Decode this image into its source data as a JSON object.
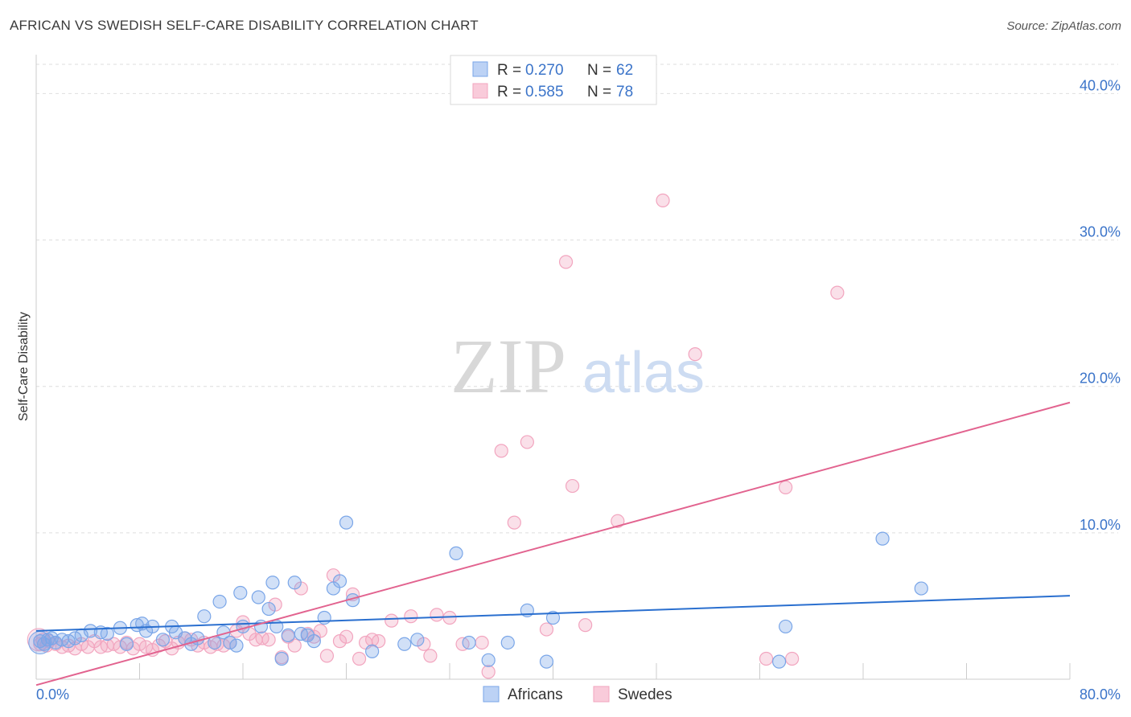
{
  "title": "AFRICAN VS SWEDISH SELF-CARE DISABILITY CORRELATION CHART",
  "source": "Source: ZipAtlas.com",
  "watermark": {
    "zip": "ZIP",
    "atlas": "atlas"
  },
  "colors": {
    "africans": "#7aa6e8",
    "africans_line": "#2a6fcf",
    "swedes": "#f2a5bf",
    "swedes_line": "#e2638f",
    "tick_label": "#3b74c9",
    "grid": "#dedede"
  },
  "legend_top": [
    {
      "r_label": "R = ",
      "r_value": "0.270",
      "n_label": "N = ",
      "n_value": "62"
    },
    {
      "r_label": "R = ",
      "r_value": "0.585",
      "n_label": "N = ",
      "n_value": "78"
    }
  ],
  "chart_data": {
    "type": "scatter",
    "title": "AFRICAN VS SWEDISH SELF-CARE DISABILITY CORRELATION CHART",
    "xlabel": "",
    "ylabel": "Self-Care Disability",
    "xlim": [
      0,
      80
    ],
    "ylim": [
      0,
      42
    ],
    "x_tick_labels": [
      "0.0%",
      "80.0%"
    ],
    "y_ticks": [
      10,
      20,
      30,
      40
    ],
    "y_tick_labels": [
      "10.0%",
      "20.0%",
      "30.0%",
      "40.0%"
    ],
    "grid": true,
    "legend_position": "bottom-center",
    "series": [
      {
        "name": "Africans",
        "r": 0.27,
        "n": 62,
        "trend": {
          "x0": 0,
          "y0": 3.3,
          "x1": 80,
          "y1": 5.7
        },
        "points": [
          [
            0.3,
            2.6
          ],
          [
            0.6,
            2.4
          ],
          [
            0.9,
            2.7
          ],
          [
            1.2,
            2.8
          ],
          [
            1.5,
            2.5
          ],
          [
            2.0,
            2.7
          ],
          [
            2.5,
            2.6
          ],
          [
            3.0,
            2.8
          ],
          [
            3.5,
            3.0
          ],
          [
            4.2,
            3.3
          ],
          [
            5.0,
            3.2
          ],
          [
            5.5,
            3.1
          ],
          [
            6.5,
            3.5
          ],
          [
            7.0,
            2.4
          ],
          [
            7.8,
            3.7
          ],
          [
            8.2,
            3.8
          ],
          [
            8.5,
            3.3
          ],
          [
            9.0,
            3.6
          ],
          [
            9.8,
            2.7
          ],
          [
            10.5,
            3.6
          ],
          [
            10.8,
            3.2
          ],
          [
            11.5,
            2.8
          ],
          [
            12.0,
            2.4
          ],
          [
            12.5,
            2.8
          ],
          [
            13.0,
            4.3
          ],
          [
            13.8,
            2.5
          ],
          [
            14.2,
            5.3
          ],
          [
            14.5,
            3.2
          ],
          [
            15.0,
            2.5
          ],
          [
            15.5,
            2.3
          ],
          [
            15.8,
            5.9
          ],
          [
            16.0,
            3.6
          ],
          [
            17.2,
            5.6
          ],
          [
            17.4,
            3.6
          ],
          [
            18.0,
            4.8
          ],
          [
            18.3,
            6.6
          ],
          [
            18.6,
            3.6
          ],
          [
            19.0,
            1.4
          ],
          [
            19.5,
            3.0
          ],
          [
            20.0,
            6.6
          ],
          [
            20.5,
            3.1
          ],
          [
            21.0,
            3.0
          ],
          [
            21.5,
            2.6
          ],
          [
            22.3,
            4.2
          ],
          [
            23.0,
            6.2
          ],
          [
            23.5,
            6.7
          ],
          [
            24.0,
            10.7
          ],
          [
            24.5,
            5.4
          ],
          [
            26.0,
            1.9
          ],
          [
            28.5,
            2.4
          ],
          [
            29.5,
            2.7
          ],
          [
            32.5,
            8.6
          ],
          [
            33.5,
            2.5
          ],
          [
            35.0,
            1.3
          ],
          [
            36.5,
            2.5
          ],
          [
            38.0,
            4.7
          ],
          [
            39.5,
            1.2
          ],
          [
            40.0,
            4.2
          ],
          [
            57.5,
            1.2
          ],
          [
            58.0,
            3.6
          ],
          [
            65.5,
            9.6
          ],
          [
            68.5,
            6.2
          ]
        ]
      },
      {
        "name": "Swedes",
        "r": 0.585,
        "n": 78,
        "trend": {
          "x0": 0,
          "y0": -0.4,
          "x1": 80,
          "y1": 18.9
        },
        "points": [
          [
            0.3,
            2.4
          ],
          [
            0.5,
            2.7
          ],
          [
            0.8,
            2.3
          ],
          [
            1.0,
            2.6
          ],
          [
            1.5,
            2.4
          ],
          [
            2.0,
            2.2
          ],
          [
            2.5,
            2.3
          ],
          [
            3.0,
            2.1
          ],
          [
            3.5,
            2.4
          ],
          [
            4.0,
            2.2
          ],
          [
            4.5,
            2.6
          ],
          [
            5.0,
            2.2
          ],
          [
            5.5,
            2.3
          ],
          [
            6.0,
            2.4
          ],
          [
            6.5,
            2.2
          ],
          [
            7.0,
            2.5
          ],
          [
            7.5,
            2.1
          ],
          [
            8.0,
            2.4
          ],
          [
            8.5,
            2.2
          ],
          [
            9.0,
            2.0
          ],
          [
            9.5,
            2.3
          ],
          [
            10.0,
            2.6
          ],
          [
            10.5,
            2.1
          ],
          [
            11.0,
            2.5
          ],
          [
            11.5,
            2.8
          ],
          [
            12.0,
            2.7
          ],
          [
            12.5,
            2.3
          ],
          [
            13.0,
            2.5
          ],
          [
            13.5,
            2.2
          ],
          [
            14.0,
            2.4
          ],
          [
            14.5,
            2.3
          ],
          [
            15.0,
            2.5
          ],
          [
            15.5,
            3.3
          ],
          [
            16.0,
            3.9
          ],
          [
            16.5,
            3.1
          ],
          [
            17.0,
            2.7
          ],
          [
            17.5,
            2.8
          ],
          [
            18.0,
            2.7
          ],
          [
            18.5,
            5.1
          ],
          [
            19.0,
            1.5
          ],
          [
            19.5,
            2.9
          ],
          [
            20.0,
            2.3
          ],
          [
            20.5,
            6.2
          ],
          [
            21.0,
            3.1
          ],
          [
            21.5,
            2.9
          ],
          [
            22.0,
            3.3
          ],
          [
            22.5,
            1.6
          ],
          [
            23.0,
            7.1
          ],
          [
            23.5,
            2.6
          ],
          [
            24.0,
            2.9
          ],
          [
            24.5,
            5.8
          ],
          [
            25.0,
            1.4
          ],
          [
            25.5,
            2.5
          ],
          [
            26.0,
            2.7
          ],
          [
            26.5,
            2.6
          ],
          [
            27.5,
            4.0
          ],
          [
            29.0,
            4.3
          ],
          [
            30.0,
            2.4
          ],
          [
            30.5,
            1.6
          ],
          [
            31.0,
            4.4
          ],
          [
            32.0,
            4.2
          ],
          [
            33.0,
            2.4
          ],
          [
            34.5,
            2.5
          ],
          [
            35.0,
            0.5
          ],
          [
            36.0,
            15.6
          ],
          [
            37.0,
            10.7
          ],
          [
            38.0,
            16.2
          ],
          [
            39.5,
            3.4
          ],
          [
            41.0,
            28.5
          ],
          [
            41.5,
            13.2
          ],
          [
            42.5,
            3.7
          ],
          [
            45.0,
            10.8
          ],
          [
            48.5,
            32.7
          ],
          [
            51.0,
            22.2
          ],
          [
            56.5,
            1.4
          ],
          [
            58.0,
            13.1
          ],
          [
            58.5,
            1.4
          ],
          [
            62.0,
            26.4
          ]
        ]
      }
    ]
  }
}
